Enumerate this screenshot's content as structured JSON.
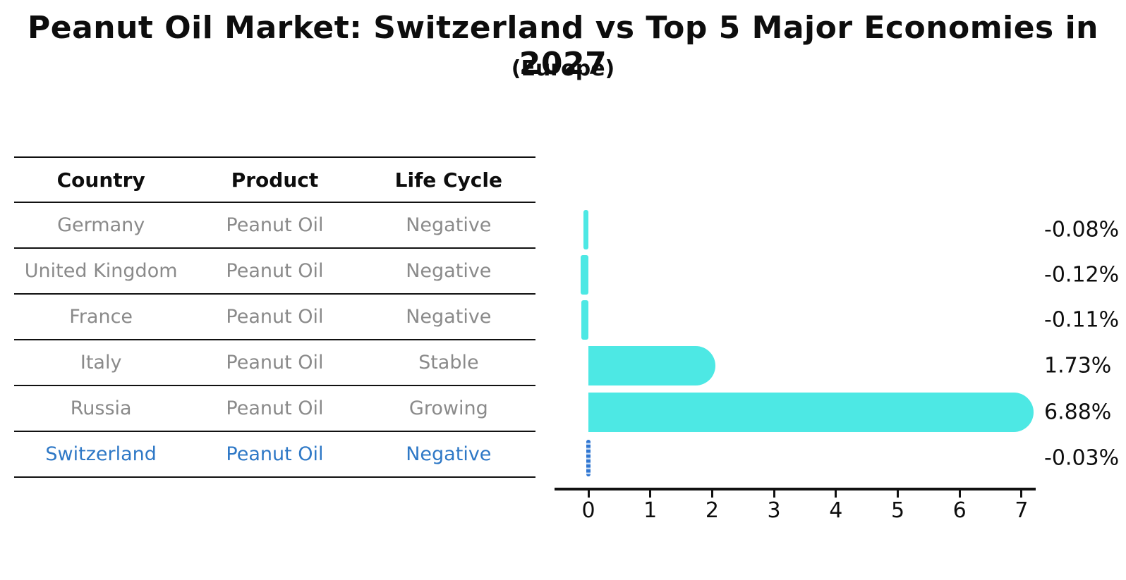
{
  "title": "Peanut Oil Market: Switzerland vs Top 5 Major Economies in 2027",
  "subtitle": "(Europe)",
  "colors": {
    "bar": "#4DE8E4",
    "highlight_text": "#2E78C6",
    "highlight_marker": "#2F76D2",
    "table_text": "#8a8a8a",
    "axis_text": "#0d0d0d"
  },
  "table": {
    "headers": [
      "Country",
      "Product",
      "Life Cycle"
    ],
    "rows": [
      {
        "country": "Germany",
        "product": "Peanut Oil",
        "life_cycle": "Negative",
        "highlight": false
      },
      {
        "country": "United Kingdom",
        "product": "Peanut Oil",
        "life_cycle": "Negative",
        "highlight": false
      },
      {
        "country": "France",
        "product": "Peanut Oil",
        "life_cycle": "Negative",
        "highlight": false
      },
      {
        "country": "Italy",
        "product": "Peanut Oil",
        "life_cycle": "Stable",
        "highlight": false
      },
      {
        "country": "Russia",
        "product": "Peanut Oil",
        "life_cycle": "Growing",
        "highlight": false
      },
      {
        "country": "Switzerland",
        "product": "Peanut Oil",
        "life_cycle": "Negative",
        "highlight": true
      }
    ]
  },
  "chart_data": {
    "type": "bar",
    "orientation": "horizontal",
    "title": "Peanut Oil Market: Switzerland vs Top 5 Major Economies in 2027 (Europe)",
    "categories": [
      "Germany",
      "United Kingdom",
      "France",
      "Italy",
      "Russia",
      "Switzerland"
    ],
    "values": [
      -0.08,
      -0.12,
      -0.11,
      1.73,
      6.88,
      -0.03
    ],
    "value_labels": [
      "-0.08%",
      "-0.12%",
      "-0.11%",
      "1.73%",
      "6.88%",
      "-0.03%"
    ],
    "x_ticks": [
      0,
      1,
      2,
      3,
      4,
      5,
      6,
      7
    ],
    "xlim": [
      -0.2,
      7.25
    ],
    "xlabel": "",
    "ylabel": "",
    "grid": false,
    "legend": false,
    "bar_color": "#4DE8E4",
    "highlight_index": 5,
    "highlight_marker": "dotted-vertical-line",
    "highlight_color": "#2F76D2"
  }
}
